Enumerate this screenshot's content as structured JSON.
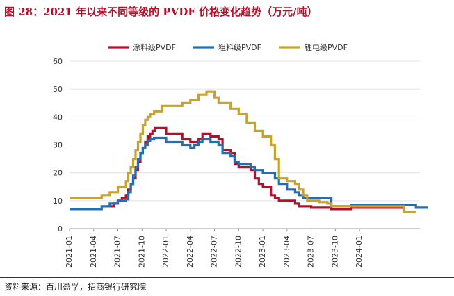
{
  "figure": {
    "title": "图 28：2021 年以来不同等级的 PVDF 价格变化趋势（万元/吨）",
    "source": "资料来源：百川盈孚，招商银行研究院"
  },
  "colors": {
    "title": "#b5102b",
    "coating": "#b5102b",
    "granular": "#1f6fb8",
    "battery": "#c9a227"
  },
  "chart_data": {
    "type": "line",
    "title": "",
    "xlabel": "",
    "ylabel": "",
    "ylim": [
      0,
      60
    ],
    "yticks": [
      0,
      10,
      20,
      30,
      40,
      50,
      60
    ],
    "xticks": [
      "2021-01",
      "2021-04",
      "2021-07",
      "2021-10",
      "2022-01",
      "2022-04",
      "2022-07",
      "2022-10",
      "2023-01",
      "2023-04",
      "2023-07",
      "2023-10",
      "2024-01"
    ],
    "x_unit": "months since 2021-01",
    "xlim": [
      0,
      42.5
    ],
    "legend_position": "top",
    "series": [
      {
        "name": "涂料级PVDF",
        "color": "#b5102b",
        "points": [
          [
            5,
            8
          ],
          [
            5.5,
            9
          ],
          [
            6,
            10
          ],
          [
            6.5,
            11
          ],
          [
            7,
            12
          ],
          [
            7.3,
            14
          ],
          [
            7.6,
            16
          ],
          [
            7.9,
            18
          ],
          [
            8.2,
            21
          ],
          [
            8.5,
            24
          ],
          [
            8.8,
            27
          ],
          [
            9.1,
            29
          ],
          [
            9.4,
            31
          ],
          [
            9.7,
            33
          ],
          [
            10,
            34
          ],
          [
            10.3,
            35
          ],
          [
            10.6,
            36
          ],
          [
            12,
            34
          ],
          [
            13.5,
            34
          ],
          [
            14,
            32
          ],
          [
            15,
            31
          ],
          [
            16,
            32
          ],
          [
            16.5,
            34
          ],
          [
            17.5,
            33
          ],
          [
            18.5,
            32
          ],
          [
            19,
            28
          ],
          [
            20,
            27
          ],
          [
            20.5,
            23
          ],
          [
            21,
            22
          ],
          [
            22.5,
            21
          ],
          [
            23,
            18
          ],
          [
            23.5,
            16
          ],
          [
            24,
            15
          ],
          [
            25,
            12
          ],
          [
            25.5,
            11
          ],
          [
            26,
            10
          ],
          [
            28,
            9
          ],
          [
            28.5,
            8
          ],
          [
            29,
            8
          ],
          [
            30,
            7.5
          ],
          [
            32,
            7.5
          ],
          [
            32.5,
            7
          ],
          [
            34,
            7
          ],
          [
            35,
            7.5
          ],
          [
            41.5,
            7.5
          ],
          [
            41.5,
            6
          ],
          [
            43,
            6
          ]
        ]
      },
      {
        "name": "粗料级PVDF",
        "color": "#1f6fb8",
        "points": [
          [
            0,
            7
          ],
          [
            3,
            7
          ],
          [
            4,
            8
          ],
          [
            5,
            9
          ],
          [
            6,
            10
          ],
          [
            7,
            10.5
          ],
          [
            7.3,
            13
          ],
          [
            7.6,
            16
          ],
          [
            7.9,
            19
          ],
          [
            8.2,
            22
          ],
          [
            8.5,
            25
          ],
          [
            8.8,
            27
          ],
          [
            9.1,
            29
          ],
          [
            9.4,
            30
          ],
          [
            9.7,
            31.5
          ],
          [
            10,
            32
          ],
          [
            10.5,
            32.5
          ],
          [
            11.5,
            32.5
          ],
          [
            12,
            31
          ],
          [
            13,
            31
          ],
          [
            14,
            30
          ],
          [
            15,
            29
          ],
          [
            15.5,
            30
          ],
          [
            16,
            31
          ],
          [
            16.5,
            32
          ],
          [
            17.5,
            31
          ],
          [
            18.5,
            30
          ],
          [
            19,
            27
          ],
          [
            20,
            26
          ],
          [
            20.5,
            24
          ],
          [
            21,
            23
          ],
          [
            22.5,
            22
          ],
          [
            23,
            21
          ],
          [
            24,
            20
          ],
          [
            25.5,
            18
          ],
          [
            26,
            16
          ],
          [
            27,
            14
          ],
          [
            28,
            13
          ],
          [
            28.5,
            12
          ],
          [
            29,
            11
          ],
          [
            31,
            11
          ],
          [
            32.5,
            11
          ],
          [
            32.5,
            8
          ],
          [
            34,
            8
          ],
          [
            35,
            8.5
          ],
          [
            43,
            8.5
          ],
          [
            43,
            7.5
          ],
          [
            44.5,
            7.5
          ]
        ]
      },
      {
        "name": "锂电级PVDF",
        "color": "#c9a227",
        "points": [
          [
            0,
            11
          ],
          [
            3,
            11
          ],
          [
            4,
            12
          ],
          [
            5,
            13
          ],
          [
            6,
            15
          ],
          [
            7,
            17
          ],
          [
            7.3,
            20
          ],
          [
            7.6,
            22
          ],
          [
            7.9,
            25
          ],
          [
            8.2,
            28
          ],
          [
            8.5,
            31
          ],
          [
            8.8,
            34
          ],
          [
            9.1,
            37
          ],
          [
            9.4,
            39
          ],
          [
            9.7,
            40
          ],
          [
            10,
            41
          ],
          [
            10.5,
            42
          ],
          [
            11,
            42
          ],
          [
            11.5,
            44
          ],
          [
            13,
            44
          ],
          [
            14,
            45
          ],
          [
            15,
            46
          ],
          [
            16,
            48
          ],
          [
            17,
            49
          ],
          [
            18,
            47
          ],
          [
            18.5,
            45
          ],
          [
            19,
            45
          ],
          [
            20,
            43
          ],
          [
            21,
            41
          ],
          [
            22,
            38
          ],
          [
            23,
            35
          ],
          [
            24,
            33
          ],
          [
            25,
            30
          ],
          [
            25.5,
            25
          ],
          [
            26,
            18
          ],
          [
            27,
            17
          ],
          [
            28,
            16
          ],
          [
            28.5,
            14
          ],
          [
            29,
            12
          ],
          [
            29.5,
            10
          ],
          [
            31,
            9.5
          ],
          [
            32,
            9
          ],
          [
            32.5,
            8
          ],
          [
            34,
            8
          ],
          [
            35,
            8
          ],
          [
            41.5,
            8
          ],
          [
            41.5,
            6
          ],
          [
            43,
            6
          ]
        ]
      }
    ]
  }
}
